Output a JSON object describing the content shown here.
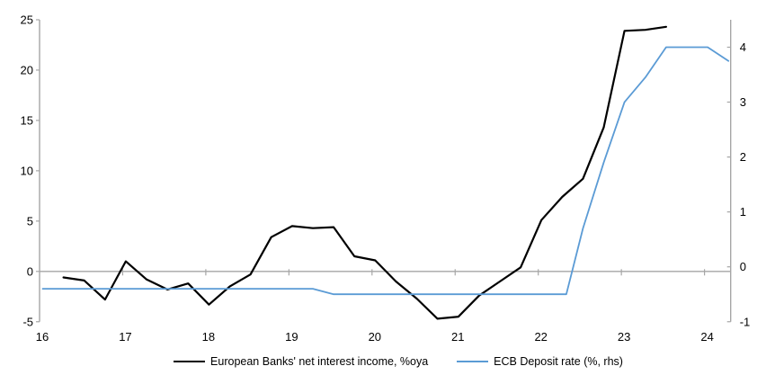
{
  "chart_data": {
    "type": "line",
    "title": "",
    "x_axis": {
      "labels": [
        "16",
        "17",
        "18",
        "19",
        "20",
        "21",
        "22",
        "23",
        "24"
      ],
      "range": [
        16,
        24.3
      ],
      "tick_style": "ticks on zero line at year boundaries"
    },
    "left_axis": {
      "ticks": [
        25,
        20,
        15,
        10,
        5,
        0,
        -5
      ],
      "range": [
        -5,
        25
      ]
    },
    "right_axis": {
      "ticks": [
        4,
        3,
        2,
        1,
        0,
        -1
      ],
      "range": [
        -1,
        4.5
      ]
    },
    "grid": "zero line only",
    "legend_position": "bottom center",
    "series": [
      {
        "name": "European Banks' net interest income, %oya",
        "color": "#000000",
        "axis": "left",
        "x": [
          16.25,
          16.5,
          16.75,
          17.0,
          17.25,
          17.5,
          17.75,
          18.0,
          18.25,
          18.5,
          18.75,
          19.0,
          19.25,
          19.5,
          19.75,
          20.0,
          20.25,
          20.5,
          20.75,
          21.0,
          21.25,
          21.5,
          21.75,
          22.0,
          22.25,
          22.5,
          22.75,
          23.0,
          23.25,
          23.5
        ],
        "values": [
          -0.6,
          -0.9,
          -2.8,
          1.0,
          -0.8,
          -1.8,
          -1.2,
          -3.3,
          -1.5,
          -0.3,
          3.4,
          4.5,
          4.3,
          4.4,
          1.5,
          1.1,
          -1.0,
          -2.7,
          -4.7,
          -4.5,
          -2.4,
          -1.0,
          0.4,
          5.1,
          7.4,
          9.2,
          14.3,
          23.9,
          24.0,
          24.3
        ]
      },
      {
        "name": "ECB Deposit rate (%, rhs)",
        "color": "#5B9BD5",
        "axis": "right",
        "x": [
          16.0,
          19.25,
          19.5,
          22.3,
          22.5,
          22.75,
          23.0,
          23.25,
          23.5,
          24.0,
          24.25
        ],
        "values": [
          -0.4,
          -0.4,
          -0.5,
          -0.5,
          0.7,
          1.9,
          3.0,
          3.45,
          4.0,
          4.0,
          3.75
        ]
      }
    ],
    "axis_color": "#A6A6A6"
  }
}
